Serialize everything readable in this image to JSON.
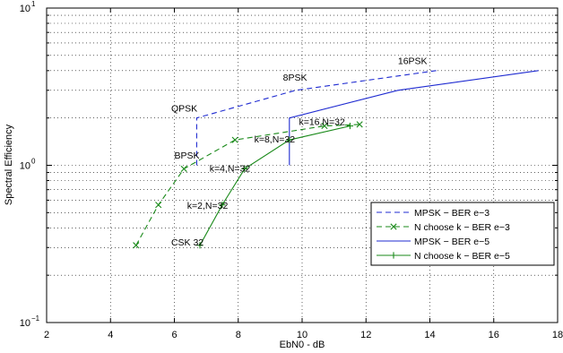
{
  "chart_data": {
    "type": "line",
    "title": "",
    "xlabel": "EbN0 - dB",
    "ylabel": "Spectral Efficiency",
    "xlim": [
      2,
      18
    ],
    "ylim": [
      0.1,
      10
    ],
    "yscale": "log",
    "grid": true,
    "legend_position": "lower-right",
    "x_ticks": [
      2,
      4,
      6,
      8,
      10,
      12,
      14,
      16,
      18
    ],
    "x_tick_labels": [
      "2",
      "4",
      "6",
      "8",
      "10",
      "12",
      "14",
      "16",
      "18"
    ],
    "y_ticks": [
      0.1,
      1,
      10
    ],
    "y_tick_labels": [
      {
        "base": "10",
        "exp": "−1"
      },
      {
        "base": "10",
        "exp": "0"
      },
      {
        "base": "10",
        "exp": "1"
      }
    ],
    "series": [
      {
        "name": "MPSK − BER e−3",
        "color": "#1f2bd1",
        "line_style": "dashed",
        "marker": "none",
        "points": [
          [
            6.7,
            1.0
          ],
          [
            6.7,
            2.0
          ],
          [
            9.8,
            3.0
          ],
          [
            14.2,
            4.0
          ]
        ]
      },
      {
        "name": "N choose k − BER e−3",
        "color": "#1a8a1a",
        "line_style": "dashed",
        "marker": "x",
        "points": [
          [
            4.8,
            0.31
          ],
          [
            5.5,
            0.56
          ],
          [
            6.3,
            0.95
          ],
          [
            7.9,
            1.45
          ],
          [
            10.7,
            1.78
          ],
          [
            11.8,
            1.82
          ]
        ]
      },
      {
        "name": "MPSK − BER e−5",
        "color": "#1f2bd1",
        "line_style": "solid",
        "marker": "none",
        "points": [
          [
            9.6,
            1.0
          ],
          [
            9.6,
            2.0
          ],
          [
            13.0,
            3.0
          ],
          [
            17.4,
            4.0
          ]
        ]
      },
      {
        "name": "N choose k − BER e−5",
        "color": "#1a8a1a",
        "line_style": "solid",
        "marker": "+",
        "points": [
          [
            6.8,
            0.31
          ],
          [
            7.5,
            0.56
          ],
          [
            8.2,
            0.95
          ],
          [
            9.6,
            1.45
          ],
          [
            11.5,
            1.78
          ]
        ]
      }
    ],
    "annotations": [
      {
        "text": "16PSK",
        "x": 13.0,
        "y": 4.4
      },
      {
        "text": "8PSK",
        "x": 9.4,
        "y": 3.45
      },
      {
        "text": "QPSK",
        "x": 5.9,
        "y": 2.2
      },
      {
        "text": "BPSK",
        "x": 6.0,
        "y": 1.1
      },
      {
        "text": "k=16,N=32",
        "x": 9.9,
        "y": 1.8
      },
      {
        "text": "k=8,N=32",
        "x": 8.5,
        "y": 1.4
      },
      {
        "text": "k=4,N=32",
        "x": 7.1,
        "y": 0.91
      },
      {
        "text": "k=2,N=32",
        "x": 6.4,
        "y": 0.53
      },
      {
        "text": "CSK 32",
        "x": 5.9,
        "y": 0.31
      }
    ]
  }
}
